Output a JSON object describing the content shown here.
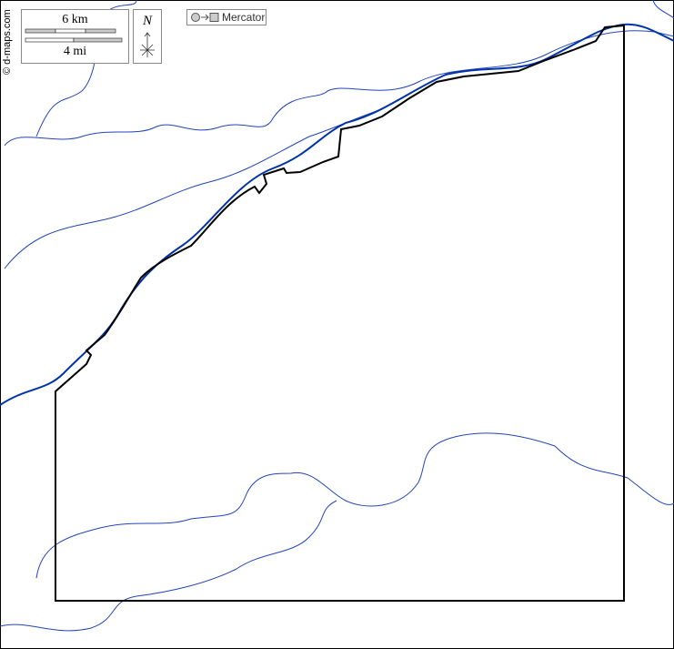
{
  "credit": "© d-maps.com",
  "scale": {
    "km_label": "6 km",
    "mi_label": "4 mi"
  },
  "north": {
    "label": "N"
  },
  "projection": {
    "label": "Mercator",
    "icon": "circle-to-square-icon"
  },
  "colors": {
    "river": "#0033aa",
    "border": "#000000"
  }
}
